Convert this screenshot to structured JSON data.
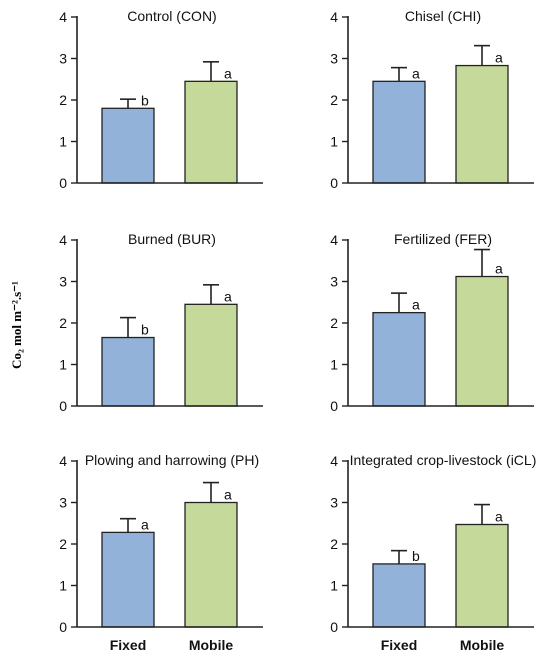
{
  "colors": {
    "fixed": "#92b2d9",
    "mobile": "#c4d99a",
    "axis": "#222222",
    "bar_edge": "#222222"
  },
  "labels": {
    "ylabel": "Co₂ mol m⁻².s⁻¹"
  },
  "chart_data": [
    {
      "type": "bar",
      "title": "Control (CON)",
      "categories": [
        "Fixed",
        "Mobile"
      ],
      "values": [
        1.8,
        2.45
      ],
      "errors": [
        0.22,
        0.47
      ],
      "letters": [
        "b",
        "a"
      ],
      "ylim": [
        0,
        4
      ],
      "yticks": [
        0,
        1,
        2,
        3,
        4
      ],
      "xlabels_shown": false
    },
    {
      "type": "bar",
      "title": "Chisel (CHI)",
      "categories": [
        "Fixed",
        "Mobile"
      ],
      "values": [
        2.45,
        2.83
      ],
      "errors": [
        0.33,
        0.48
      ],
      "letters": [
        "a",
        "a"
      ],
      "ylim": [
        0,
        4
      ],
      "yticks": [
        0,
        1,
        2,
        3,
        4
      ],
      "xlabels_shown": false
    },
    {
      "type": "bar",
      "title": "Burned (BUR)",
      "categories": [
        "Fixed",
        "Mobile"
      ],
      "values": [
        1.65,
        2.45
      ],
      "errors": [
        0.48,
        0.47
      ],
      "letters": [
        "b",
        "a"
      ],
      "ylim": [
        0,
        4
      ],
      "yticks": [
        0,
        1,
        2,
        3,
        4
      ],
      "xlabels_shown": false
    },
    {
      "type": "bar",
      "title": "Fertilized (FER)",
      "categories": [
        "Fixed",
        "Mobile"
      ],
      "values": [
        2.25,
        3.12
      ],
      "errors": [
        0.47,
        0.65
      ],
      "letters": [
        "a",
        "a"
      ],
      "ylim": [
        0,
        4
      ],
      "yticks": [
        0,
        1,
        2,
        3,
        4
      ],
      "xlabels_shown": false
    },
    {
      "type": "bar",
      "title": "Plowing and harrowing (PH)",
      "categories": [
        "Fixed",
        "Mobile"
      ],
      "values": [
        2.28,
        3.0
      ],
      "errors": [
        0.33,
        0.48
      ],
      "letters": [
        "a",
        "a"
      ],
      "ylim": [
        0,
        4
      ],
      "yticks": [
        0,
        1,
        2,
        3,
        4
      ],
      "xlabels_shown": true
    },
    {
      "type": "bar",
      "title": "Integrated crop-livestock (iCL)",
      "categories": [
        "Fixed",
        "Mobile"
      ],
      "values": [
        1.52,
        2.47
      ],
      "errors": [
        0.32,
        0.48
      ],
      "letters": [
        "b",
        "a"
      ],
      "ylim": [
        0,
        4
      ],
      "yticks": [
        0,
        1,
        2,
        3,
        4
      ],
      "xlabels_shown": true
    }
  ]
}
